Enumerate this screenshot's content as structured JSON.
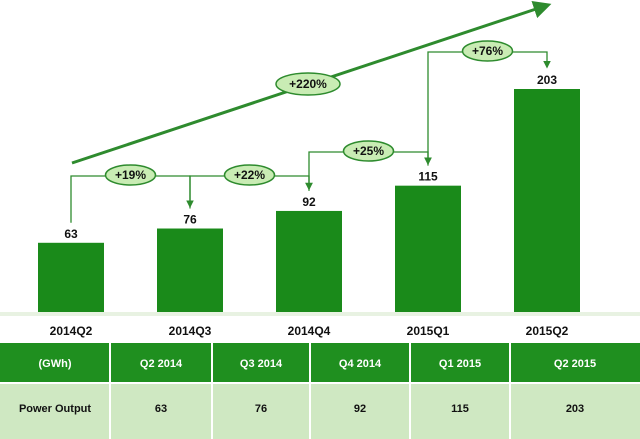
{
  "colors": {
    "bar": "#1a8a1a",
    "bar_dark": "#127012",
    "arrow": "#2e8b2e",
    "ellipse_fill": "#c9ecb4",
    "ellipse_stroke": "#2e8b2e",
    "header_bg": "#1f8f1f",
    "row_bg": "#cfe8c2",
    "header_text": "#ffffff",
    "row_text": "#111111"
  },
  "chart_data": {
    "type": "bar",
    "categories": [
      "2014Q2",
      "2014Q3",
      "2014Q4",
      "2015Q1",
      "2015Q2"
    ],
    "values": [
      63,
      76,
      92,
      115,
      203
    ],
    "value_labels": [
      "63",
      "76",
      "92",
      "115",
      "203"
    ],
    "title": "",
    "xlabel": "",
    "ylabel": "",
    "ylim": [
      0,
      230
    ],
    "grid": false,
    "growth": [
      {
        "from": 0,
        "to": 1,
        "label": "+19%"
      },
      {
        "from": 1,
        "to": 2,
        "label": "+22%"
      },
      {
        "from": 2,
        "to": 3,
        "label": "+25%"
      },
      {
        "from": 3,
        "to": 4,
        "label": "+76%"
      }
    ],
    "overall_growth": {
      "label": "+220%"
    }
  },
  "table": {
    "headers": [
      "(GWh)",
      "Q2 2014",
      "Q3 2014",
      "Q4 2014",
      "Q1 2015",
      "Q2 2015"
    ],
    "rows": [
      {
        "label": "Power Output",
        "values": [
          "63",
          "76",
          "92",
          "115",
          "203"
        ]
      }
    ]
  }
}
